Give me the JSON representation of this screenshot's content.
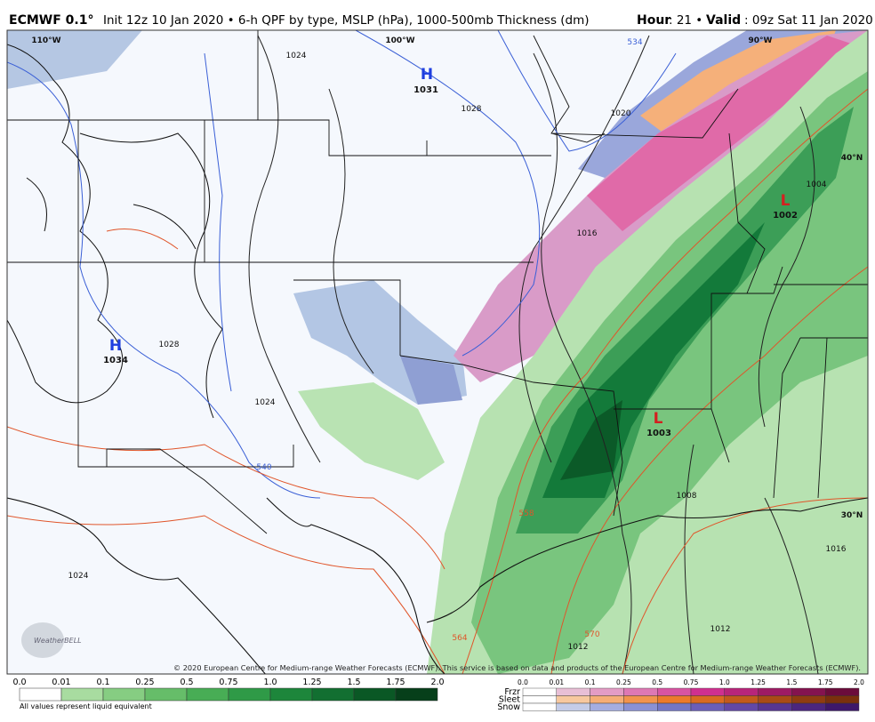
{
  "header": {
    "model": "ECMWF 0.1°",
    "description": "Init 12z 10 Jan 2020 • 6-h QPF by type, MSLP (hPa), 1000-500mb Thickness (dm)",
    "hour_label": "Hour",
    "hour_value": ": 21 •",
    "valid_label": "Valid",
    "valid_value": ": 09z Sat 11 Jan 2020"
  },
  "map": {
    "labels": [
      "110°W",
      "100°W",
      "90°W",
      "40°N",
      "30°N",
      "H",
      "1031",
      "H",
      "1034",
      "L",
      "1002",
      "L",
      "1003",
      "1024",
      "1028",
      "1020",
      "1016",
      "1012",
      "1008",
      "1004",
      "1016",
      "1024",
      "1028",
      "540",
      "534",
      "564",
      "570",
      "558",
      "1012",
      "1024"
    ],
    "copyright": "© 2020 European Centre for Medium-range Weather Forecasts (ECMWF). This service is based on data and products of the European Centre for Medium-range Weather Forecasts (ECMWF).",
    "watermark": "WeatherBELL"
  },
  "rain_scale": {
    "ticks": [
      "0.0",
      "0.01",
      "0.1",
      "0.25",
      "0.5",
      "0.75",
      "1.0",
      "1.25",
      "1.5",
      "1.75",
      "2.0"
    ],
    "note": "All values represent liquid equivalent"
  },
  "type_scale": {
    "rows": [
      "Frzr",
      "Sleet",
      "Snow"
    ],
    "ticks": [
      "0.0",
      "0.01",
      "0.1",
      "0.25",
      "0.5",
      "0.75",
      "1.0",
      "1.25",
      "1.5",
      "1.75",
      "2.0"
    ]
  }
}
